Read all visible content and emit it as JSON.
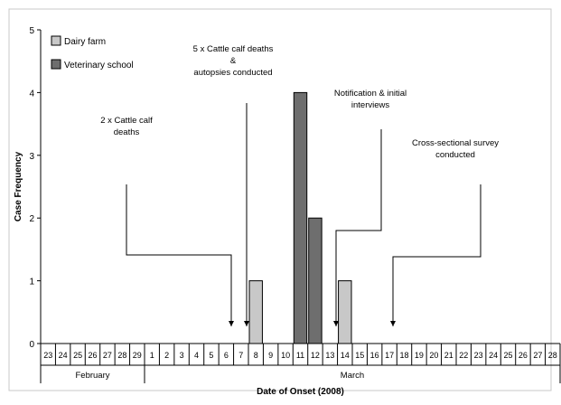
{
  "chart_data": {
    "type": "bar",
    "xlabel": "Date of Onset (2008)",
    "ylabel": "Case Frequency",
    "ylim": [
      0,
      5
    ],
    "yticks": [
      0,
      1,
      2,
      3,
      4,
      5
    ],
    "categories": [
      "23",
      "24",
      "25",
      "26",
      "27",
      "28",
      "29",
      "1",
      "2",
      "3",
      "4",
      "5",
      "6",
      "7",
      "8",
      "9",
      "10",
      "11",
      "12",
      "13",
      "14",
      "15",
      "16",
      "17",
      "18",
      "19",
      "20",
      "21",
      "22",
      "23",
      "24",
      "25",
      "26",
      "27",
      "28"
    ],
    "months": [
      {
        "label": "February",
        "from": 0,
        "to": 6
      },
      {
        "label": "March",
        "from": 7,
        "to": 34
      }
    ],
    "series": [
      {
        "name": "Dairy farm",
        "color": "#c8c8c8",
        "values": [
          0,
          0,
          0,
          0,
          0,
          0,
          0,
          0,
          0,
          0,
          0,
          0,
          0,
          0,
          1,
          0,
          0,
          0,
          0,
          0,
          1,
          0,
          0,
          0,
          0,
          0,
          0,
          0,
          0,
          0,
          0,
          0,
          0,
          0,
          0
        ]
      },
      {
        "name": "Veterinary school",
        "color": "#6e6e6e",
        "values": [
          0,
          0,
          0,
          0,
          0,
          0,
          0,
          0,
          0,
          0,
          0,
          0,
          0,
          0,
          0,
          0,
          0,
          4,
          2,
          0,
          0,
          0,
          0,
          0,
          0,
          0,
          0,
          0,
          0,
          0,
          0,
          0,
          0,
          0,
          0
        ]
      }
    ],
    "legend": "top-left",
    "annotations": [
      {
        "lines": [
          "2 x Cattle calf",
          "deaths"
        ],
        "points_to": "6 March"
      },
      {
        "lines": [
          "5 x Cattle calf deaths",
          "&",
          "autopsies conducted"
        ],
        "points_to": "7 March"
      },
      {
        "lines": [
          "Notification & initial",
          "interviews"
        ],
        "points_to": "13 March"
      },
      {
        "lines": [
          "Cross-sectional survey",
          "conducted"
        ],
        "points_to": "17 March"
      }
    ]
  }
}
